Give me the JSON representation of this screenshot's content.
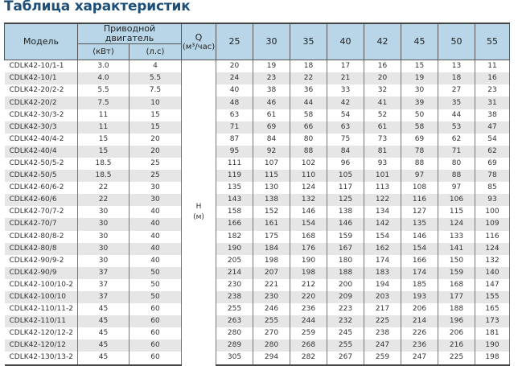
{
  "title": "Таблица характеристик",
  "header": {
    "model": "Модель",
    "motor": "Приводной двигатель",
    "kw": "(кВт)",
    "hp": "(л.с)",
    "q_label": "Q",
    "q_unit": "(м³/час)",
    "flows": [
      "25",
      "30",
      "35",
      "40",
      "42",
      "45",
      "50",
      "55"
    ]
  },
  "h_label": "H",
  "h_unit": "(м)",
  "rows": [
    {
      "model": "CDLK42-10/1-1",
      "kw": "3.0",
      "hp": "4",
      "h": [
        "20",
        "19",
        "18",
        "17",
        "16",
        "15",
        "13",
        "11"
      ]
    },
    {
      "model": "CDLK42-10/1",
      "kw": "4.0",
      "hp": "5.5",
      "h": [
        "24",
        "23",
        "22",
        "21",
        "20",
        "19",
        "18",
        "16"
      ]
    },
    {
      "model": "CDLK42-20/2-2",
      "kw": "5.5",
      "hp": "7.5",
      "h": [
        "40",
        "38",
        "36",
        "33",
        "32",
        "30",
        "27",
        "23"
      ]
    },
    {
      "model": "CDLK42-20/2",
      "kw": "7.5",
      "hp": "10",
      "h": [
        "48",
        "46",
        "44",
        "42",
        "41",
        "39",
        "35",
        "31"
      ]
    },
    {
      "model": "CDLK42-30/3-2",
      "kw": "11",
      "hp": "15",
      "h": [
        "63",
        "61",
        "58",
        "54",
        "52",
        "50",
        "44",
        "38"
      ]
    },
    {
      "model": "CDLK42-30/3",
      "kw": "11",
      "hp": "15",
      "h": [
        "71",
        "69",
        "66",
        "63",
        "61",
        "58",
        "53",
        "47"
      ]
    },
    {
      "model": "CDLK42-40/4-2",
      "kw": "15",
      "hp": "20",
      "h": [
        "87",
        "84",
        "80",
        "75",
        "73",
        "69",
        "62",
        "54"
      ]
    },
    {
      "model": "CDLK42-40/4",
      "kw": "15",
      "hp": "20",
      "h": [
        "95",
        "92",
        "88",
        "84",
        "81",
        "78",
        "71",
        "62"
      ]
    },
    {
      "model": "CDLK42-50/5-2",
      "kw": "18.5",
      "hp": "25",
      "h": [
        "111",
        "107",
        "102",
        "96",
        "93",
        "88",
        "80",
        "69"
      ]
    },
    {
      "model": "CDLK42-50/5",
      "kw": "18.5",
      "hp": "25",
      "h": [
        "119",
        "115",
        "110",
        "105",
        "101",
        "97",
        "88",
        "78"
      ]
    },
    {
      "model": "CDLK42-60/6-2",
      "kw": "22",
      "hp": "30",
      "h": [
        "135",
        "130",
        "124",
        "117",
        "113",
        "108",
        "97",
        "85"
      ]
    },
    {
      "model": "CDLK42-60/6",
      "kw": "22",
      "hp": "30",
      "h": [
        "143",
        "138",
        "132",
        "125",
        "122",
        "116",
        "106",
        "93"
      ]
    },
    {
      "model": "CDLK42-70/7-2",
      "kw": "30",
      "hp": "40",
      "h": [
        "158",
        "152",
        "146",
        "138",
        "134",
        "127",
        "115",
        "100"
      ]
    },
    {
      "model": "CDLK42-70/7",
      "kw": "30",
      "hp": "40",
      "h": [
        "166",
        "161",
        "154",
        "146",
        "142",
        "135",
        "124",
        "109"
      ]
    },
    {
      "model": "CDLK42-80/8-2",
      "kw": "30",
      "hp": "40",
      "h": [
        "182",
        "175",
        "168",
        "159",
        "154",
        "146",
        "133",
        "116"
      ]
    },
    {
      "model": "CDLK42-80/8",
      "kw": "30",
      "hp": "40",
      "h": [
        "190",
        "184",
        "176",
        "167",
        "162",
        "154",
        "141",
        "124"
      ]
    },
    {
      "model": "CDLK42-90/9-2",
      "kw": "30",
      "hp": "40",
      "h": [
        "205",
        "198",
        "190",
        "180",
        "174",
        "166",
        "150",
        "132"
      ]
    },
    {
      "model": "CDLK42-90/9",
      "kw": "37",
      "hp": "50",
      "h": [
        "214",
        "207",
        "198",
        "188",
        "183",
        "174",
        "159",
        "140"
      ]
    },
    {
      "model": "CDLK42-100/10-2",
      "kw": "37",
      "hp": "50",
      "h": [
        "230",
        "221",
        "212",
        "200",
        "194",
        "185",
        "168",
        "147"
      ]
    },
    {
      "model": "CDLK42-100/10",
      "kw": "37",
      "hp": "50",
      "h": [
        "238",
        "230",
        "220",
        "209",
        "203",
        "193",
        "177",
        "155"
      ]
    },
    {
      "model": "CDLK42-110/11-2",
      "kw": "45",
      "hp": "60",
      "h": [
        "255",
        "246",
        "236",
        "223",
        "217",
        "206",
        "188",
        "165"
      ]
    },
    {
      "model": "CDLK42-110/11",
      "kw": "45",
      "hp": "60",
      "h": [
        "263",
        "255",
        "244",
        "232",
        "225",
        "214",
        "196",
        "173"
      ]
    },
    {
      "model": "CDLK42-120/12-2",
      "kw": "45",
      "hp": "60",
      "h": [
        "280",
        "270",
        "259",
        "245",
        "238",
        "226",
        "206",
        "181"
      ]
    },
    {
      "model": "CDLK42-120/12",
      "kw": "45",
      "hp": "60",
      "h": [
        "289",
        "280",
        "268",
        "255",
        "247",
        "236",
        "216",
        "190"
      ]
    },
    {
      "model": "CDLK42-130/13-2",
      "kw": "45",
      "hp": "60",
      "h": [
        "305",
        "294",
        "282",
        "267",
        "259",
        "247",
        "225",
        "198"
      ]
    }
  ]
}
